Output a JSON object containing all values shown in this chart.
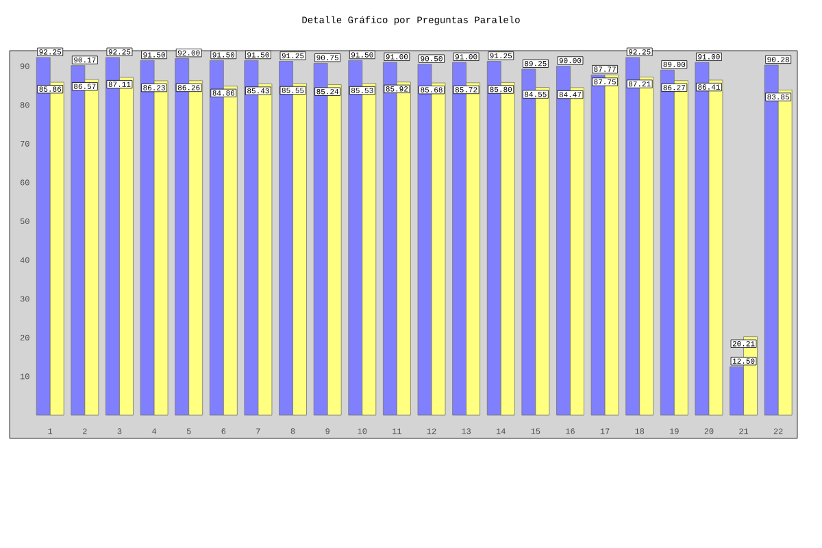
{
  "chart_data": {
    "type": "bar",
    "title": "Detalle Gráfico por Preguntas Paralelo",
    "categories": [
      "1",
      "2",
      "3",
      "4",
      "5",
      "6",
      "7",
      "8",
      "9",
      "10",
      "11",
      "12",
      "13",
      "14",
      "15",
      "16",
      "17",
      "18",
      "19",
      "20",
      "21",
      "22"
    ],
    "series": [
      {
        "color": "#8080ff",
        "values": [
          92.25,
          90.17,
          92.25,
          91.5,
          92.0,
          91.5,
          91.5,
          91.25,
          90.75,
          91.5,
          91.0,
          90.5,
          91.0,
          91.25,
          89.25,
          90.0,
          87.77,
          92.25,
          89.0,
          91.0,
          12.5,
          90.28
        ],
        "value_labels": [
          "92.25",
          "90.17",
          "92.25",
          "91.50",
          "92.00",
          "91.50",
          "91.50",
          "91.25",
          "90.75",
          "91.50",
          "91.00",
          "90.50",
          "91.00",
          "91.25",
          "89.25",
          "90.00",
          "87.77",
          "92.25",
          "89.00",
          "91.00",
          "12.50",
          "90.28"
        ]
      },
      {
        "color": "#ffff80",
        "values": [
          85.86,
          86.57,
          87.11,
          86.23,
          86.26,
          84.86,
          85.43,
          85.55,
          85.24,
          85.53,
          85.92,
          85.68,
          85.72,
          85.8,
          84.55,
          84.47,
          87.75,
          87.21,
          86.27,
          86.41,
          20.21,
          83.85
        ],
        "value_labels": [
          "85.86",
          "86.57",
          "87.11",
          "86.23",
          "86.26",
          "84.86",
          "85.43",
          "85.55",
          "85.24",
          "85.53",
          "85.92",
          "85.68",
          "85.72",
          "85.80",
          "84.55",
          "84.47",
          "87.75",
          "87.21",
          "86.27",
          "86.41",
          "20.21",
          "83.85"
        ]
      }
    ],
    "ylim": [
      -6,
      94
    ],
    "yticks": [
      10,
      20,
      30,
      40,
      50,
      60,
      70,
      80,
      90
    ],
    "grid": false
  }
}
